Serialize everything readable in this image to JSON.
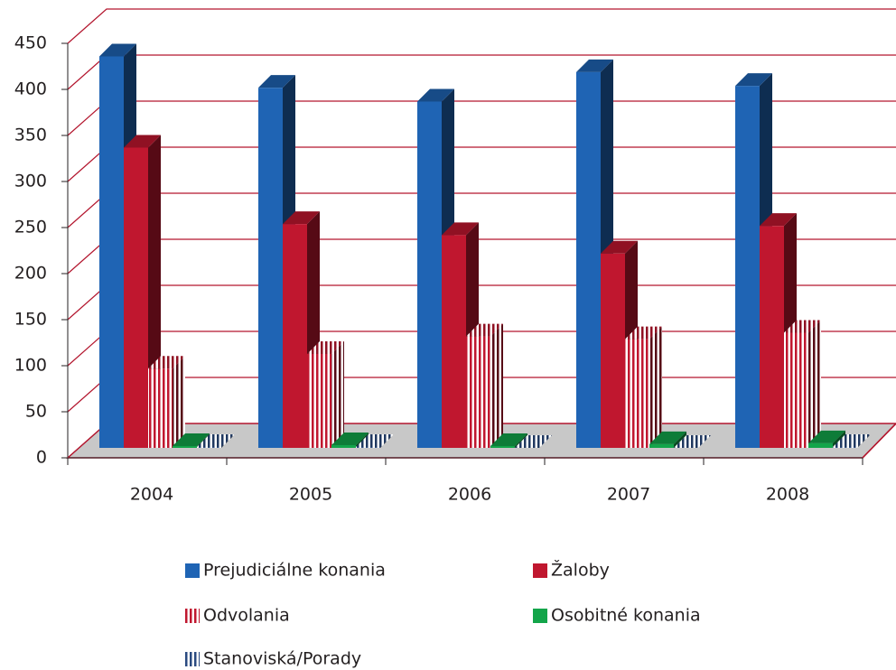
{
  "chart_data": {
    "type": "bar3d",
    "categories": [
      "2004",
      "2005",
      "2006",
      "2007",
      "2008"
    ],
    "series": [
      {
        "name": "Prejudiciálne konania",
        "color": "#1f64b4",
        "values": [
          425,
          391,
          376,
          408,
          393
        ]
      },
      {
        "name": "Žaloby",
        "color": "#c0172f",
        "values": [
          326,
          243,
          231,
          211,
          241
        ]
      },
      {
        "name": "Odvolania",
        "color": "#c0172f",
        "pattern": "vertical-stripes",
        "values": [
          86,
          102,
          121,
          118,
          125
        ]
      },
      {
        "name": "Osobitné konania",
        "color": "#13a54a",
        "values": [
          2,
          3,
          2,
          4,
          5
        ]
      },
      {
        "name": "Stanoviská/Porady",
        "color": "#2a4a80",
        "pattern": "vertical-stripes",
        "values": [
          1,
          1,
          0,
          0,
          1
        ]
      }
    ],
    "ylim": [
      0,
      450
    ],
    "yticks": [
      0,
      50,
      100,
      150,
      200,
      250,
      300,
      350,
      400,
      450
    ],
    "grid": true
  }
}
